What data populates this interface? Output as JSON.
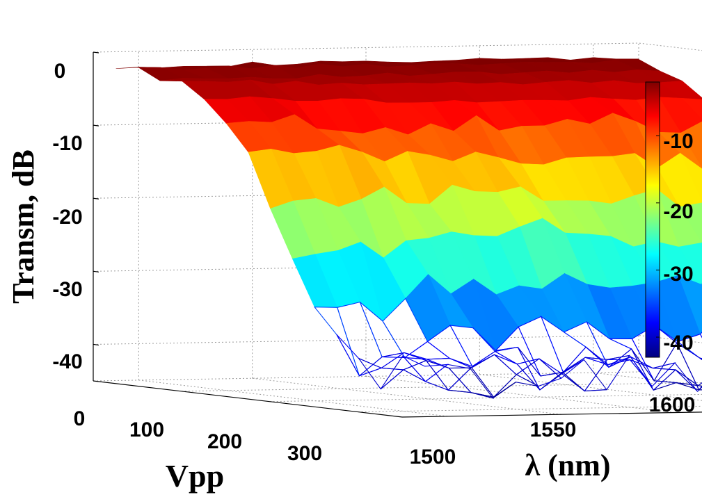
{
  "chart_data": {
    "type": "surface",
    "title": "",
    "zlabel": "Transm, dB",
    "xlabel": "Vpp",
    "ylabel": "λ (nm)",
    "z_ticks": [
      "0",
      "-10",
      "-20",
      "-30",
      "-40"
    ],
    "x_ticks": [
      "0",
      "100",
      "200",
      "300"
    ],
    "y_ticks": [
      "1500",
      "1550",
      "1600"
    ],
    "zlim": [
      -45,
      0
    ],
    "xlim": [
      0,
      350
    ],
    "ylim": [
      1490,
      1610
    ],
    "grid": true,
    "colormap": "jet",
    "colorbar": {
      "placement": "right",
      "range": [
        -43,
        -2
      ],
      "ticks": [
        "-10",
        "-20",
        "-30",
        "-40"
      ],
      "colors": [
        "#00007f",
        "#0000ff",
        "#007fff",
        "#00ffff",
        "#7fff7f",
        "#ffff00",
        "#ff7f00",
        "#ff0000",
        "#7f0000"
      ]
    },
    "profile": {
      "description_note": "",
      "vpp_steps": [
        0,
        25,
        50,
        75,
        100,
        125,
        150,
        175,
        200,
        225,
        250,
        275,
        300,
        325,
        350
      ],
      "transmission_db_at_1500nm": [
        -2,
        -2,
        -3,
        -3,
        -5,
        -8,
        -12,
        -18,
        -25,
        -32,
        -38,
        -40,
        -40,
        -40,
        -40
      ],
      "transmission_db_at_1550nm": [
        -2,
        -2,
        -3,
        -4,
        -6,
        -9,
        -13,
        -17,
        -22,
        -28,
        -34,
        -39,
        -40,
        -40,
        -40
      ],
      "transmission_db_at_1600nm": [
        -2,
        -2,
        -3,
        -4,
        -6,
        -9,
        -14,
        -19,
        -25,
        -31,
        -36,
        -40,
        -40,
        -40,
        -40
      ]
    }
  }
}
